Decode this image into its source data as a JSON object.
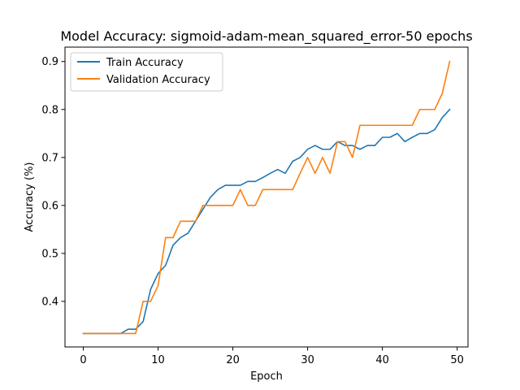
{
  "chart_data": {
    "type": "line",
    "title": "Model Accuracy: sigmoid-adam-mean_squared_error-50 epochs",
    "xlabel": "Epoch",
    "ylabel": "Accuracy (%)",
    "xlim": [
      -2.45,
      51.45
    ],
    "ylim": [
      0.305,
      0.93
    ],
    "xticks": [
      0,
      10,
      20,
      30,
      40,
      50
    ],
    "yticks": [
      0.4,
      0.5,
      0.6,
      0.7,
      0.8,
      0.9
    ],
    "grid": false,
    "legend_position": "upper-left",
    "x": [
      0,
      1,
      2,
      3,
      4,
      5,
      6,
      7,
      8,
      9,
      10,
      11,
      12,
      13,
      14,
      15,
      16,
      17,
      18,
      19,
      20,
      21,
      22,
      23,
      24,
      25,
      26,
      27,
      28,
      29,
      30,
      31,
      32,
      33,
      34,
      35,
      36,
      37,
      38,
      39,
      40,
      41,
      42,
      43,
      44,
      45,
      46,
      47,
      48,
      49
    ],
    "series": [
      {
        "name": "Train Accuracy",
        "color": "#1f77b4",
        "values": [
          0.333,
          0.333,
          0.333,
          0.333,
          0.333,
          0.333,
          0.342,
          0.342,
          0.358,
          0.425,
          0.458,
          0.475,
          0.517,
          0.533,
          0.542,
          0.567,
          0.592,
          0.617,
          0.633,
          0.642,
          0.642,
          0.642,
          0.65,
          0.65,
          0.658,
          0.667,
          0.675,
          0.667,
          0.692,
          0.7,
          0.717,
          0.725,
          0.717,
          0.717,
          0.733,
          0.725,
          0.725,
          0.717,
          0.725,
          0.725,
          0.742,
          0.742,
          0.75,
          0.733,
          0.742,
          0.75,
          0.75,
          0.758,
          0.783,
          0.8
        ]
      },
      {
        "name": "Validation Accuracy",
        "color": "#ff7f0e",
        "values": [
          0.333,
          0.333,
          0.333,
          0.333,
          0.333,
          0.333,
          0.333,
          0.333,
          0.4,
          0.4,
          0.433,
          0.533,
          0.533,
          0.567,
          0.567,
          0.567,
          0.6,
          0.6,
          0.6,
          0.6,
          0.6,
          0.633,
          0.6,
          0.6,
          0.633,
          0.633,
          0.633,
          0.633,
          0.633,
          0.667,
          0.7,
          0.667,
          0.7,
          0.667,
          0.733,
          0.733,
          0.7,
          0.767,
          0.767,
          0.767,
          0.767,
          0.767,
          0.767,
          0.767,
          0.767,
          0.8,
          0.8,
          0.8,
          0.833,
          0.9
        ]
      }
    ]
  }
}
